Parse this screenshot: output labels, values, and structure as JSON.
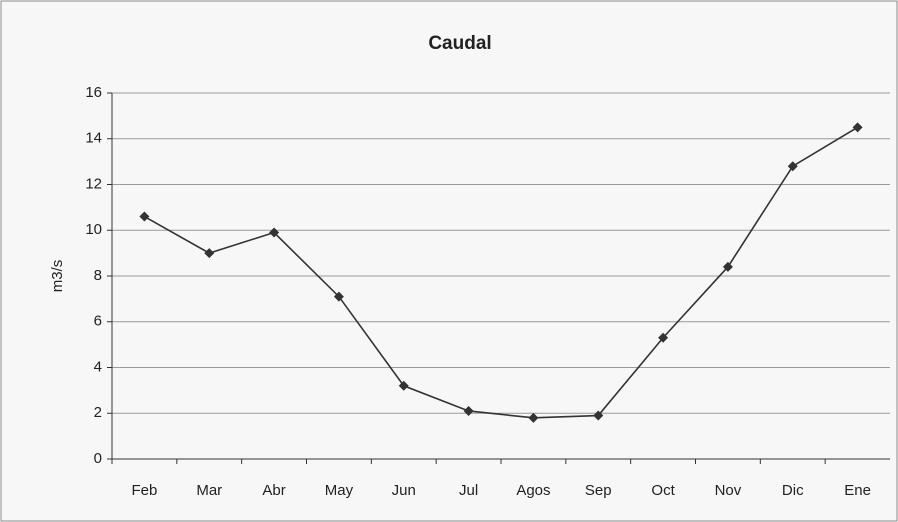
{
  "chart_data": {
    "type": "line",
    "title": "Caudal",
    "y_label": "m3/s",
    "categories": [
      "Feb",
      "Mar",
      "Abr",
      "May",
      "Jun",
      "Jul",
      "Agos",
      "Sep",
      "Oct",
      "Nov",
      "Dic",
      "Ene"
    ],
    "series": [
      {
        "name": "Caudal",
        "color": "#333333",
        "values": [
          10.6,
          9.0,
          9.9,
          7.1,
          3.2,
          2.1,
          1.8,
          1.9,
          5.3,
          8.4,
          12.8,
          14.5
        ]
      }
    ],
    "ylim": [
      0,
      16
    ],
    "yticks": [
      0,
      2,
      4,
      6,
      8,
      10,
      12,
      14,
      16
    ],
    "grid": true
  }
}
